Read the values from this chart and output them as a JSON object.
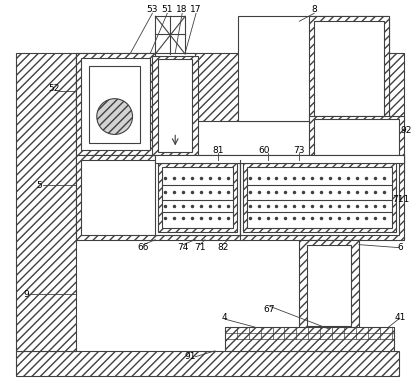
{
  "fig_width": 4.14,
  "fig_height": 3.86,
  "dpi": 100,
  "bg_color": "#ffffff",
  "lc": "#404040",
  "lw": 0.8
}
